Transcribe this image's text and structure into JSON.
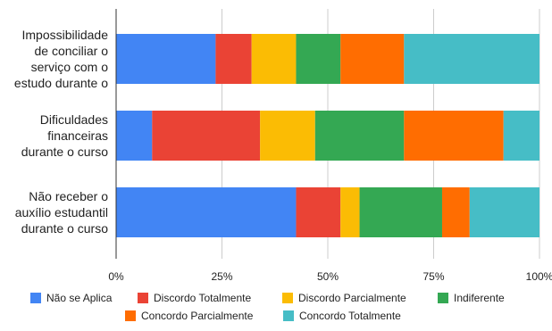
{
  "chart_data": {
    "type": "bar",
    "orientation": "horizontal",
    "stacked": true,
    "normalized": true,
    "categories": [
      [
        "Impossibilidade",
        "de conciliar o",
        "serviço com o",
        "estudo durante o"
      ],
      [
        "Dificuldades",
        "financeiras",
        "durante o curso"
      ],
      [
        "Não receber o",
        "auxílio estudantil",
        "durante o curso"
      ]
    ],
    "series": [
      {
        "name": "Não se Aplica",
        "color": "#4285F4",
        "values": [
          23.5,
          8.5,
          42.5
        ]
      },
      {
        "name": "Discordo Totalmente",
        "color": "#EA4335",
        "values": [
          8.5,
          25.5,
          10.5
        ]
      },
      {
        "name": "Discordo Parcialmente",
        "color": "#FBBC04",
        "values": [
          10.5,
          13.0,
          4.5
        ]
      },
      {
        "name": "Indiferente",
        "color": "#34A853",
        "values": [
          10.5,
          21.0,
          19.5
        ]
      },
      {
        "name": "Concordo Parcialmente",
        "color": "#FF6D01",
        "values": [
          15.0,
          23.5,
          6.5
        ]
      },
      {
        "name": "Concordo Totalmente",
        "color": "#46BDC6",
        "values": [
          32.0,
          8.5,
          16.5
        ]
      }
    ],
    "xlim": [
      0,
      100
    ],
    "xticks": [
      "0%",
      "25%",
      "50%",
      "75%",
      "100%"
    ],
    "grid": true,
    "legend_position": "bottom"
  }
}
